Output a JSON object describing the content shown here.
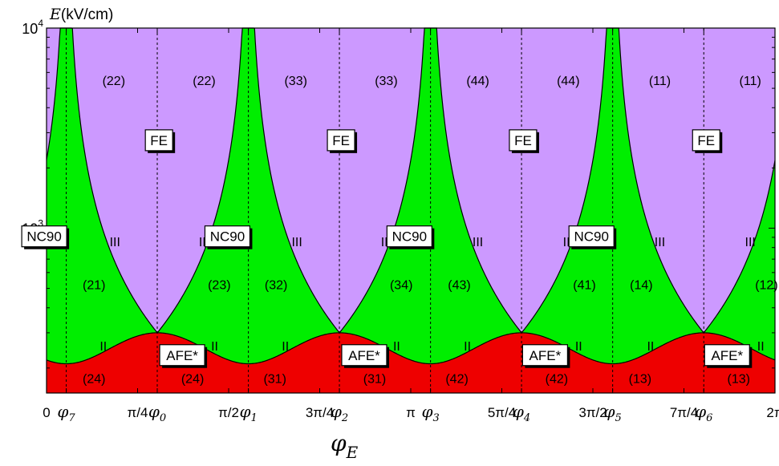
{
  "colors": {
    "fe": "#cc99ff",
    "nc90": "#00ee00",
    "afe": "#ee0000"
  },
  "chart_data": {
    "type": "area",
    "ylabel": "E (kV/cm)",
    "ylabel_symbol": "E",
    "ylabel_unit": "(kV/cm)",
    "xlabel_symbol": "φ",
    "xlabel_sub": "E",
    "xlim": [
      0,
      6.2832
    ],
    "ylim": [
      150,
      10000
    ],
    "yscale": "log",
    "yticks": [
      {
        "value": 1000,
        "base": "10",
        "exp": "3"
      },
      {
        "value": 10000,
        "base": "10",
        "exp": "4"
      }
    ],
    "xticks": [
      {
        "value": 0,
        "label": "0",
        "sub": ""
      },
      {
        "value": 0.17,
        "label": "φ",
        "sub": "7"
      },
      {
        "value": 0.7854,
        "label": "π/4",
        "sub": ""
      },
      {
        "value": 0.955,
        "label": "φ",
        "sub": "0"
      },
      {
        "value": 1.5708,
        "label": "π/2",
        "sub": ""
      },
      {
        "value": 1.741,
        "label": "φ",
        "sub": "1"
      },
      {
        "value": 2.3562,
        "label": "3π/4",
        "sub": ""
      },
      {
        "value": 2.526,
        "label": "φ",
        "sub": "2"
      },
      {
        "value": 3.1416,
        "label": "π",
        "sub": ""
      },
      {
        "value": 3.312,
        "label": "φ",
        "sub": "3"
      },
      {
        "value": 3.927,
        "label": "5π/4",
        "sub": ""
      },
      {
        "value": 4.097,
        "label": "φ",
        "sub": "4"
      },
      {
        "value": 4.7124,
        "label": "3π/2",
        "sub": ""
      },
      {
        "value": 4.883,
        "label": "φ",
        "sub": "5"
      },
      {
        "value": 5.4978,
        "label": "7π/4",
        "sub": ""
      },
      {
        "value": 5.669,
        "label": "φ",
        "sub": "6"
      },
      {
        "value": 6.2832,
        "label": "2π",
        "sub": ""
      }
    ],
    "dashed_lines_x": [
      0.17,
      0.955,
      1.741,
      2.526,
      3.312,
      4.097,
      4.883,
      5.669
    ],
    "regions": [
      {
        "name": "FE",
        "color_key": "fe"
      },
      {
        "name": "NC90",
        "color_key": "nc90"
      },
      {
        "name": "AFE*",
        "color_key": "afe"
      }
    ],
    "boundaries": {
      "spike_x": [
        0.17,
        1.741,
        3.312,
        4.883
      ],
      "triple_x": [
        0.955,
        2.526,
        4.097,
        5.669
      ],
      "triple_E": 300,
      "afe_nc90_min_E": 210
    },
    "phase_boxes": [
      {
        "text": "FE",
        "x": 0.97,
        "E": 2750
      },
      {
        "text": "FE",
        "x": 2.54,
        "E": 2750
      },
      {
        "text": "FE",
        "x": 4.11,
        "E": 2750
      },
      {
        "text": "FE",
        "x": 5.69,
        "E": 2750
      },
      {
        "text": "NC90",
        "x": -0.02,
        "E": 910
      },
      {
        "text": "NC90",
        "x": 1.56,
        "E": 910
      },
      {
        "text": "NC90",
        "x": 3.13,
        "E": 910
      },
      {
        "text": "NC90",
        "x": 4.7,
        "E": 910
      },
      {
        "text": "AFE*",
        "x": 1.17,
        "E": 232
      },
      {
        "text": "AFE*",
        "x": 2.74,
        "E": 232
      },
      {
        "text": "AFE*",
        "x": 4.3,
        "E": 232
      },
      {
        "text": "AFE*",
        "x": 5.87,
        "E": 232
      }
    ],
    "annotations": [
      {
        "text": "(22)",
        "x": 0.58,
        "E": 5500
      },
      {
        "text": "(22)",
        "x": 1.36,
        "E": 5500
      },
      {
        "text": "(33)",
        "x": 2.15,
        "E": 5500
      },
      {
        "text": "(33)",
        "x": 2.93,
        "E": 5500
      },
      {
        "text": "(44)",
        "x": 3.72,
        "E": 5500
      },
      {
        "text": "(44)",
        "x": 4.5,
        "E": 5500
      },
      {
        "text": "(11)",
        "x": 5.29,
        "E": 5500
      },
      {
        "text": "(11)",
        "x": 6.07,
        "E": 5500
      },
      {
        "text": "III",
        "x": 0.59,
        "E": 860
      },
      {
        "text": "III",
        "x": 1.36,
        "E": 860
      },
      {
        "text": "III",
        "x": 2.16,
        "E": 860
      },
      {
        "text": "III",
        "x": 2.93,
        "E": 860
      },
      {
        "text": "III",
        "x": 3.72,
        "E": 860
      },
      {
        "text": "III",
        "x": 4.5,
        "E": 860
      },
      {
        "text": "III",
        "x": 5.29,
        "E": 860
      },
      {
        "text": "III",
        "x": 6.07,
        "E": 860
      },
      {
        "text": "(21)",
        "x": 0.41,
        "E": 525
      },
      {
        "text": "(23)",
        "x": 1.49,
        "E": 525
      },
      {
        "text": "(32)",
        "x": 1.98,
        "E": 525
      },
      {
        "text": "(34)",
        "x": 3.06,
        "E": 525
      },
      {
        "text": "(43)",
        "x": 3.56,
        "E": 525
      },
      {
        "text": "(41)",
        "x": 4.64,
        "E": 525
      },
      {
        "text": "(14)",
        "x": 5.13,
        "E": 525
      },
      {
        "text": "(12)",
        "x": 6.21,
        "E": 525
      },
      {
        "text": "II",
        "x": 0.49,
        "E": 258
      },
      {
        "text": "II",
        "x": 1.45,
        "E": 258
      },
      {
        "text": "II",
        "x": 2.06,
        "E": 258
      },
      {
        "text": "II",
        "x": 3.02,
        "E": 258
      },
      {
        "text": "II",
        "x": 3.63,
        "E": 258
      },
      {
        "text": "II",
        "x": 4.59,
        "E": 258
      },
      {
        "text": "II",
        "x": 5.21,
        "E": 258
      },
      {
        "text": "II",
        "x": 6.16,
        "E": 258
      },
      {
        "text": "(24)",
        "x": 0.41,
        "E": 178
      },
      {
        "text": "(24)",
        "x": 1.26,
        "E": 178
      },
      {
        "text": "(31)",
        "x": 1.97,
        "E": 178
      },
      {
        "text": "(31)",
        "x": 2.83,
        "E": 178
      },
      {
        "text": "(42)",
        "x": 3.54,
        "E": 178
      },
      {
        "text": "(42)",
        "x": 4.4,
        "E": 178
      },
      {
        "text": "(13)",
        "x": 5.12,
        "E": 178
      },
      {
        "text": "(13)",
        "x": 5.97,
        "E": 178
      }
    ]
  }
}
